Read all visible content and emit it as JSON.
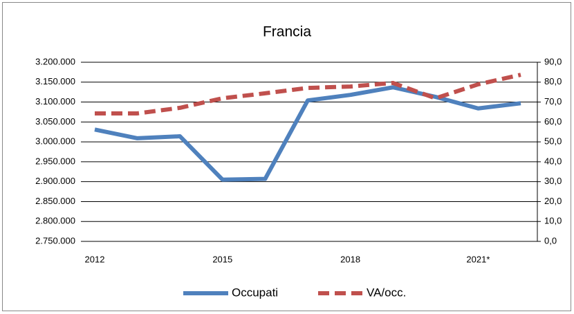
{
  "chart_data": {
    "type": "line",
    "title": "Francia",
    "categories": [
      "2012",
      null,
      null,
      "2015",
      null,
      null,
      "2018",
      null,
      null,
      "2021*",
      null
    ],
    "series": [
      {
        "name": "Occupati",
        "color": "#4f81bd",
        "values": [
          3031000,
          3009000,
          3014000,
          2905000,
          2907000,
          3104000,
          3118000,
          3137000,
          3113000,
          3084000,
          3097000
        ]
      },
      {
        "name": "VA/occ.",
        "color": "#c0504d",
        "axis": "y2",
        "dashed": true,
        "values": [
          64.3,
          64.3,
          67.1,
          71.9,
          74.4,
          77.1,
          77.8,
          79.6,
          71.9,
          78.9,
          83.7
        ]
      }
    ],
    "ylim": [
      2750000,
      3200000
    ],
    "yticks": [
      {
        "value": 2750000,
        "label": "2.750.000"
      },
      {
        "value": 2800000,
        "label": "2.800.000"
      },
      {
        "value": 2850000,
        "label": "2.850.000"
      },
      {
        "value": 2900000,
        "label": "2.900.000"
      },
      {
        "value": 2950000,
        "label": "2.950.000"
      },
      {
        "value": 3000000,
        "label": "3.000.000"
      },
      {
        "value": 3050000,
        "label": "3.050.000"
      },
      {
        "value": 3100000,
        "label": "3.100.000"
      },
      {
        "value": 3150000,
        "label": "3.150.000"
      },
      {
        "value": 3200000,
        "label": "3.200.000"
      }
    ],
    "y2lim": [
      0,
      90
    ],
    "y2ticks": [
      {
        "value": 0,
        "label": "0,0"
      },
      {
        "value": 10,
        "label": "10,0"
      },
      {
        "value": 20,
        "label": "20,0"
      },
      {
        "value": 30,
        "label": "30,0"
      },
      {
        "value": 40,
        "label": "40,0"
      },
      {
        "value": 50,
        "label": "50,0"
      },
      {
        "value": 60,
        "label": "60,0"
      },
      {
        "value": 70,
        "label": "70,0"
      },
      {
        "value": 80,
        "label": "80,0"
      },
      {
        "value": 90,
        "label": "90,0"
      }
    ],
    "grid": true,
    "legend": "bottom"
  }
}
